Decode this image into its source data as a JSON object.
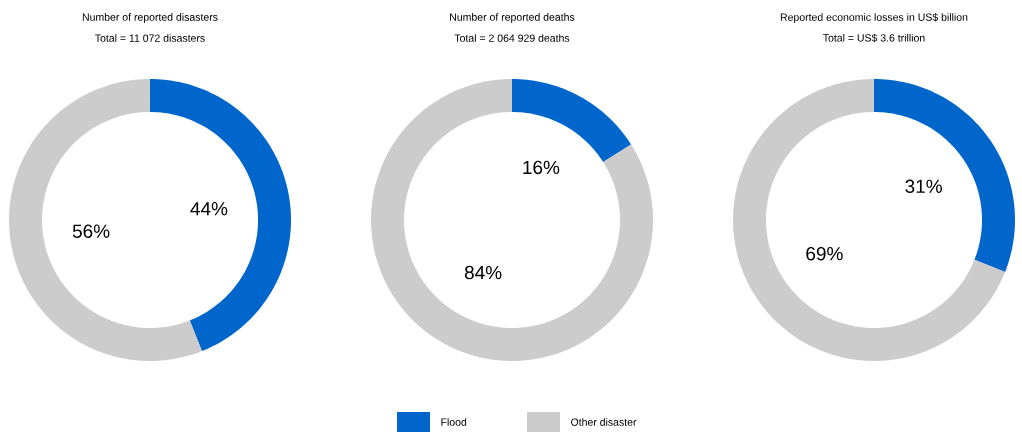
{
  "chart_data": [
    {
      "type": "donut",
      "title": "Number of reported disasters",
      "subtitle": "Total = 11 072 disasters",
      "categories": [
        null,
        null
      ],
      "values": [
        44,
        56
      ],
      "colors": [
        "#0066cc",
        "#cccccc"
      ],
      "value_labels": [
        "44%",
        "56%"
      ]
    },
    {
      "type": "donut",
      "title": "Number of reported deaths",
      "subtitle": "Total = 2 064 929 deaths",
      "categories": [
        "Flood",
        "Other disaster"
      ],
      "values": [
        16,
        84
      ],
      "colors": [
        "#0066cc",
        "#cccccc"
      ],
      "value_labels": [
        "16%",
        "84%"
      ],
      "legend": "bottom"
    },
    {
      "type": "donut",
      "title": "Reported economic losses in US$ billion",
      "subtitle": "Total = US$ 3.6 trillion",
      "categories": [
        null,
        null
      ],
      "values": [
        31,
        69
      ],
      "colors": [
        "#0066cc",
        "#cccccc"
      ],
      "value_labels": [
        "31%",
        "69%"
      ]
    }
  ]
}
